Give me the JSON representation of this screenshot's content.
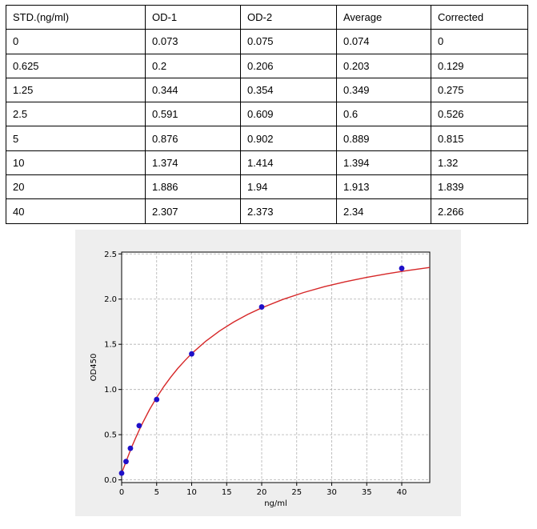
{
  "table": {
    "header": [
      "STD.(ng/ml)",
      "OD-1",
      "OD-2",
      "Average",
      "Corrected"
    ],
    "rows": [
      [
        "0",
        "0.073",
        "0.075",
        "0.074",
        "0"
      ],
      [
        "0.625",
        "0.2",
        "0.206",
        "0.203",
        "0.129"
      ],
      [
        "1.25",
        "0.344",
        "0.354",
        "0.349",
        "0.275"
      ],
      [
        "2.5",
        "0.591",
        "0.609",
        "0.6",
        "0.526"
      ],
      [
        "5",
        "0.876",
        "0.902",
        "0.889",
        "0.815"
      ],
      [
        "10",
        "1.374",
        "1.414",
        "1.394",
        "1.32"
      ],
      [
        "20",
        "1.886",
        "1.94",
        "1.913",
        "1.839"
      ],
      [
        "40",
        "2.307",
        "2.373",
        "2.34",
        "2.266"
      ]
    ]
  },
  "chart_data": {
    "type": "scatter",
    "title": "",
    "xlabel": "ng/ml",
    "ylabel": "OD450",
    "xlim": [
      0,
      44
    ],
    "ylim": [
      -0.03,
      2.52
    ],
    "xticks": [
      0,
      5,
      10,
      15,
      20,
      25,
      30,
      35,
      40
    ],
    "yticks": [
      0.0,
      0.5,
      1.0,
      1.5,
      2.0,
      2.5
    ],
    "xtick_labels": [
      "0",
      "5",
      "10",
      "15",
      "20",
      "25",
      "30",
      "35",
      "40"
    ],
    "ytick_labels": [
      "0.0",
      "0.5",
      "1.0",
      "1.5",
      "2.0",
      "2.5"
    ],
    "grid": true,
    "series": [
      {
        "x": [
          0,
          0.625,
          1.25,
          2.5,
          5,
          10,
          20,
          40
        ],
        "y": [
          0.074,
          0.203,
          0.349,
          0.6,
          0.889,
          1.394,
          1.913,
          2.34
        ],
        "color": "#1f10c8"
      }
    ],
    "fit_curve": {
      "color": "#d62728",
      "x": [
        0,
        0.5,
        1,
        1.5,
        2,
        2.5,
        3,
        4,
        5,
        6,
        7,
        8,
        9,
        10,
        12,
        14,
        16,
        18,
        20,
        23,
        26,
        29,
        32,
        35,
        38,
        41,
        44
      ],
      "y": [
        0.074,
        0.177,
        0.278,
        0.375,
        0.464,
        0.55,
        0.631,
        0.78,
        0.912,
        1.03,
        1.136,
        1.232,
        1.318,
        1.397,
        1.534,
        1.649,
        1.746,
        1.83,
        1.903,
        1.996,
        2.073,
        2.138,
        2.193,
        2.24,
        2.282,
        2.318,
        2.35
      ]
    }
  }
}
